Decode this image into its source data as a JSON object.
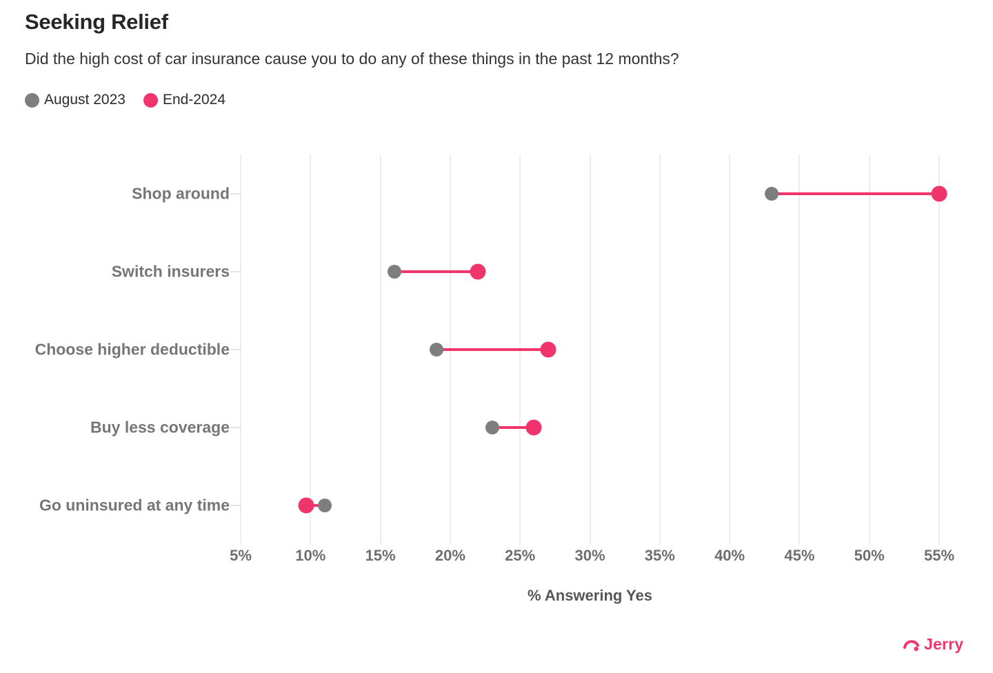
{
  "header": {
    "title": "Seeking Relief",
    "subtitle": "Did the high cost of car insurance cause you to do any of these things in the past 12 months?"
  },
  "legend": {
    "items": [
      {
        "label": "August 2023",
        "color": "#7e7e7e"
      },
      {
        "label": "End-2024",
        "color": "#f0356d"
      }
    ]
  },
  "chart_data": {
    "type": "dumbbell",
    "orientation": "horizontal",
    "categories": [
      "Shop around",
      "Switch insurers",
      "Choose higher deductible",
      "Buy less coverage",
      "Go uninsured at any time"
    ],
    "series": [
      {
        "name": "August 2023",
        "color": "#7e7e7e",
        "values": [
          43,
          16,
          19,
          23,
          11
        ]
      },
      {
        "name": "End-2024",
        "color": "#f0356d",
        "values": [
          55,
          22,
          27,
          26,
          9.7
        ]
      }
    ],
    "connector_color": "#f0356d",
    "xlabel": "% Answering Yes",
    "xlim": [
      5,
      55
    ],
    "x_ticks": [
      5,
      10,
      15,
      20,
      25,
      30,
      35,
      40,
      45,
      50,
      55
    ],
    "x_tick_labels": [
      "5%",
      "10%",
      "15%",
      "20%",
      "25%",
      "30%",
      "35%",
      "40%",
      "45%",
      "50%",
      "55%"
    ],
    "grid": true,
    "legend_position": "top-left"
  },
  "footer": {
    "brand": "Jerry",
    "brand_color": "#f0356d"
  }
}
